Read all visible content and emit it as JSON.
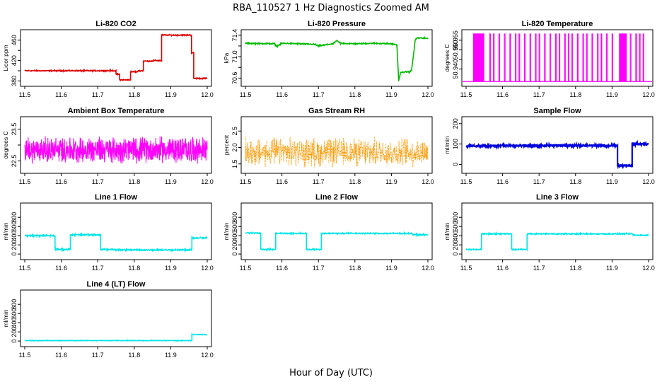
{
  "figure": {
    "title": "RBA_110527  1 Hz Diagnostics Zoomed AM",
    "xlabel": "Hour of Day (UTC)"
  },
  "chart_data": [
    {
      "id": "co2",
      "type": "line",
      "title": "Li-820 CO2",
      "ylabel": "Licor ppm",
      "color": "#dd0000",
      "xlim": [
        11.5,
        12.0
      ],
      "ylim": [
        375,
        475
      ],
      "xticks": [
        11.5,
        11.6,
        11.7,
        11.8,
        11.9,
        12.0
      ],
      "yticks": [
        380,
        400,
        420,
        440,
        460
      ],
      "ytick_labels": [
        "380",
        "",
        "420",
        "",
        "460"
      ],
      "x": [
        11.5,
        11.75,
        11.75,
        11.76,
        11.76,
        11.79,
        11.79,
        11.81,
        11.81,
        11.825,
        11.825,
        11.85,
        11.85,
        11.875,
        11.875,
        11.957,
        11.957,
        11.963,
        11.963,
        12.0
      ],
      "y": [
        400,
        400,
        393,
        393,
        382,
        382,
        398,
        398,
        400,
        400,
        419,
        419,
        420,
        420,
        470,
        470,
        435,
        435,
        385,
        385
      ],
      "noise": 0.5
    },
    {
      "id": "pressure",
      "type": "line",
      "title": "Li-820 Pressure",
      "ylabel": "kPa",
      "color": "#00bb00",
      "xlim": [
        11.5,
        12.0
      ],
      "ylim": [
        70.5,
        71.45
      ],
      "xticks": [
        11.5,
        11.6,
        11.7,
        11.8,
        11.9,
        12.0
      ],
      "yticks": [
        70.6,
        70.8,
        71.0,
        71.2,
        71.4
      ],
      "ytick_labels": [
        "70.6",
        "",
        "71.0",
        "",
        "71.4"
      ],
      "x": [
        11.5,
        11.58,
        11.585,
        11.6,
        11.65,
        11.69,
        11.7,
        11.74,
        11.75,
        11.76,
        11.8,
        11.85,
        11.9,
        11.915,
        11.92,
        11.925,
        11.93,
        11.95,
        11.955,
        11.96,
        11.965,
        11.97,
        12.0
      ],
      "y": [
        71.25,
        71.24,
        71.19,
        71.25,
        71.24,
        71.23,
        71.2,
        71.24,
        71.3,
        71.25,
        71.24,
        71.25,
        71.24,
        71.22,
        70.55,
        70.7,
        70.71,
        70.72,
        70.74,
        71.0,
        71.3,
        71.35,
        71.34
      ],
      "noise": 0.005
    },
    {
      "id": "licor_temp",
      "type": "line",
      "title": "Li-820 Temperature",
      "ylabel": "degrees C",
      "color": "#ff00ff",
      "xlim": [
        11.5,
        12.0
      ],
      "ylim": [
        50.9325,
        50.959
      ],
      "xticks": [
        11.5,
        11.6,
        11.7,
        11.8,
        11.9,
        12.0
      ],
      "yticks": [
        50.94,
        50.945,
        50.95,
        50.955
      ],
      "ytick_labels": [
        "50.940",
        "",
        "50.950",
        "50.955"
      ],
      "baseline": 50.9335,
      "spike_top": 50.9585,
      "dense_ranges": [
        [
          11.52,
          11.55
        ],
        [
          11.92,
          11.94
        ]
      ],
      "spike_x": [
        11.565,
        11.575,
        11.59,
        11.605,
        11.62,
        11.635,
        11.645,
        11.66,
        11.675,
        11.69,
        11.7,
        11.715,
        11.73,
        11.745,
        11.755,
        11.77,
        11.78,
        11.79,
        11.805,
        11.82,
        11.83,
        11.845,
        11.86,
        11.87,
        11.885,
        11.9,
        11.95,
        11.965,
        11.975,
        11.985
      ]
    },
    {
      "id": "box_temp",
      "type": "line",
      "title": "Ambient Box Temperature",
      "ylabel": "degrees C",
      "color": "#ff00ff",
      "xlim": [
        11.5,
        12.0
      ],
      "ylim": [
        22.2,
        23.8
      ],
      "xticks": [
        11.5,
        11.6,
        11.7,
        11.8,
        11.9,
        12.0
      ],
      "yticks": [
        22.5,
        23.0,
        23.5
      ],
      "ytick_labels": [
        "22.5",
        "",
        "23.5"
      ],
      "mean": 22.85,
      "amplitude": 0.45
    },
    {
      "id": "rh",
      "type": "scatter",
      "title": "Gas Stream RH",
      "ylabel": "percent",
      "color": "#ff9900",
      "xlim": [
        11.5,
        12.0
      ],
      "ylim": [
        1.3,
        2.85
      ],
      "xticks": [
        11.5,
        11.6,
        11.7,
        11.8,
        11.9,
        12.0
      ],
      "yticks": [
        1.5,
        2.0,
        2.5
      ],
      "ytick_labels": [
        "1.5",
        "2.0",
        "2.5"
      ],
      "mean": 1.85,
      "amplitude": 0.5
    },
    {
      "id": "sample_flow",
      "type": "line",
      "title": "Sample Flow",
      "ylabel": "ml/min",
      "color": "#0000dd",
      "xlim": [
        11.5,
        12.0
      ],
      "ylim": [
        -30,
        220
      ],
      "xticks": [
        11.5,
        11.6,
        11.7,
        11.8,
        11.9,
        12.0
      ],
      "yticks": [
        0,
        100,
        200
      ],
      "ytick_labels": [
        "0",
        "100",
        "200"
      ],
      "x": [
        11.5,
        11.6,
        11.7,
        11.75,
        11.8,
        11.915,
        11.915,
        11.955,
        11.955,
        12.0
      ],
      "y": [
        90,
        92,
        90,
        93,
        92,
        92,
        -5,
        -5,
        100,
        100
      ],
      "noise": 3
    },
    {
      "id": "line1",
      "type": "line",
      "title": "Line 1 Flow",
      "ylabel": "ml/min",
      "color": "#00e5e5",
      "xlim": [
        11.5,
        12.0
      ],
      "ylim": [
        -60,
        1050
      ],
      "xticks": [
        11.5,
        11.6,
        11.7,
        11.8,
        11.9,
        12.0
      ],
      "yticks": [
        0,
        200,
        400,
        600,
        800
      ],
      "ytick_labels": [
        "0",
        "200",
        "400",
        "600",
        "800"
      ],
      "x": [
        11.5,
        11.583,
        11.583,
        11.625,
        11.625,
        11.708,
        11.708,
        11.75,
        11.75,
        11.958,
        11.958,
        12.0
      ],
      "y": [
        400,
        400,
        100,
        100,
        420,
        420,
        100,
        100,
        90,
        90,
        350,
        350
      ],
      "noise": 8
    },
    {
      "id": "line2",
      "type": "line",
      "title": "Line 2 Flow",
      "ylabel": "ml/min",
      "color": "#00e5e5",
      "xlim": [
        11.5,
        12.0
      ],
      "ylim": [
        -60,
        1050
      ],
      "xticks": [
        11.5,
        11.6,
        11.7,
        11.8,
        11.9,
        12.0
      ],
      "yticks": [
        0,
        200,
        400,
        600,
        800
      ],
      "ytick_labels": [
        "0",
        "200",
        "400",
        "600",
        "800"
      ],
      "x": [
        11.5,
        11.542,
        11.542,
        11.583,
        11.583,
        11.667,
        11.667,
        11.708,
        11.708,
        11.958,
        11.958,
        12.0
      ],
      "y": [
        460,
        460,
        100,
        100,
        450,
        450,
        100,
        100,
        450,
        450,
        420,
        420
      ],
      "noise": 6
    },
    {
      "id": "line3",
      "type": "line",
      "title": "Line 3 Flow",
      "ylabel": "ml/min",
      "color": "#00e5e5",
      "xlim": [
        11.5,
        12.0
      ],
      "ylim": [
        -60,
        1050
      ],
      "xticks": [
        11.5,
        11.6,
        11.7,
        11.8,
        11.9,
        12.0
      ],
      "yticks": [
        0,
        200,
        400,
        600,
        800
      ],
      "ytick_labels": [
        "0",
        "200",
        "400",
        "600",
        "800"
      ],
      "x": [
        11.5,
        11.542,
        11.542,
        11.625,
        11.625,
        11.667,
        11.667,
        11.958,
        11.958,
        12.0
      ],
      "y": [
        100,
        100,
        440,
        440,
        100,
        100,
        440,
        440,
        410,
        410
      ],
      "noise": 6
    },
    {
      "id": "line4",
      "type": "line",
      "title": "Line 4 (LT) Flow",
      "ylabel": "ml/min",
      "color": "#00e5e5",
      "xlim": [
        11.5,
        12.0
      ],
      "ylim": [
        -60,
        1050
      ],
      "xticks": [
        11.5,
        11.6,
        11.7,
        11.8,
        11.9,
        12.0
      ],
      "yticks": [
        0,
        200,
        400,
        600,
        800
      ],
      "ytick_labels": [
        "0",
        "200",
        "400",
        "600",
        "800"
      ],
      "x": [
        11.5,
        11.958,
        11.958,
        12.0
      ],
      "y": [
        10,
        10,
        140,
        140
      ],
      "noise": 3
    }
  ]
}
